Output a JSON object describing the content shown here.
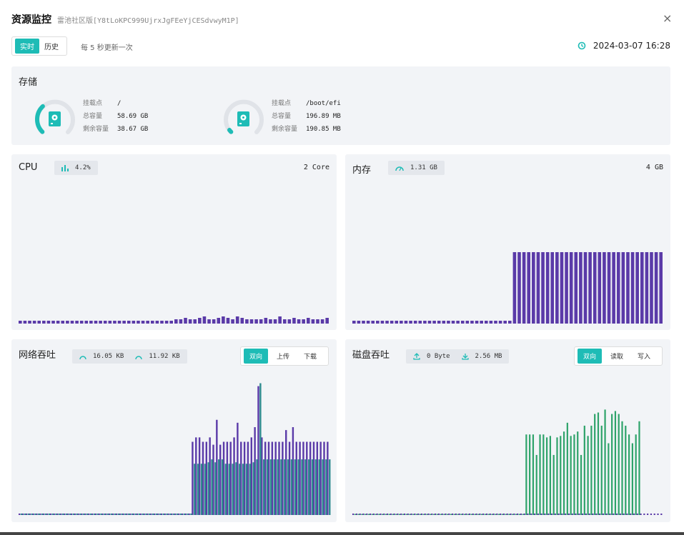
{
  "header": {
    "title": "资源监控",
    "subtitle": "雷池社区版[Y8tLoKPC999UjrxJgFEeYjCESdvwyM1P]",
    "close": "×"
  },
  "mode": {
    "realtime": "实时",
    "history": "历史"
  },
  "refresh_text": "每 5 秒更新一次",
  "timestamp": "2024-03-07 16:28",
  "storage": {
    "title": "存储",
    "disks": [
      {
        "mount_label": "挂载点",
        "mount": "/",
        "total_label": "总容量",
        "total": "58.69 GB",
        "free_label": "剩余容量",
        "free": "38.67 GB",
        "usage": 0.34
      },
      {
        "mount_label": "挂载点",
        "mount": "/boot/efi",
        "total_label": "总容量",
        "total": "196.89 MB",
        "free_label": "剩余容量",
        "free": "190.85 MB",
        "usage": 0.03
      }
    ]
  },
  "cpu": {
    "title": "CPU",
    "usage": "4.2%",
    "cores": "2 Core"
  },
  "memory": {
    "title": "内存",
    "used": "1.31 GB",
    "total": "4 GB"
  },
  "network": {
    "title": "网络吞吐",
    "up": "16.05 KB",
    "down": "11.92 KB",
    "tabs": [
      "双向",
      "上传",
      "下载"
    ]
  },
  "disk_io": {
    "title": "磁盘吞吐",
    "read": "0 Byte",
    "write": "2.56 MB",
    "tabs": [
      "双向",
      "读取",
      "写入"
    ]
  },
  "colors": {
    "accent": "#1ebcb6",
    "purple": "#5a3aa8",
    "green": "#2ea36a",
    "teal": "#2f8b8f"
  },
  "chart_data": [
    {
      "type": "bar",
      "name": "cpu",
      "values": [
        2,
        2,
        2,
        2,
        2,
        2,
        2,
        2,
        2,
        2,
        2,
        2,
        2,
        2,
        2,
        2,
        2,
        2,
        2,
        2,
        2,
        2,
        2,
        2,
        2,
        2,
        2,
        2,
        2,
        2,
        2,
        2,
        2,
        3,
        3,
        4,
        3,
        3,
        4,
        5,
        3,
        3,
        4,
        5,
        4,
        3,
        5,
        4,
        3,
        3,
        3,
        3,
        4,
        3,
        3,
        5,
        3,
        3,
        4,
        3,
        3,
        4,
        3,
        3,
        3,
        4
      ]
    },
    {
      "type": "bar",
      "name": "memory",
      "values": [
        2,
        2,
        2,
        2,
        2,
        2,
        2,
        2,
        2,
        2,
        2,
        2,
        2,
        2,
        2,
        2,
        2,
        2,
        2,
        2,
        2,
        2,
        2,
        2,
        2,
        2,
        2,
        2,
        2,
        2,
        2,
        2,
        2,
        2,
        50,
        50,
        50,
        50,
        50,
        50,
        50,
        50,
        50,
        50,
        50,
        50,
        50,
        50,
        50,
        50,
        50,
        50,
        50,
        50,
        50,
        50,
        50,
        50,
        50,
        50,
        50,
        50,
        50,
        50,
        50,
        50
      ]
    },
    {
      "type": "bar",
      "name": "network",
      "series": [
        {
          "values": [
            1,
            1,
            1,
            1,
            1,
            1,
            1,
            1,
            1,
            1,
            1,
            1,
            1,
            1,
            1,
            1,
            1,
            1,
            1,
            1,
            1,
            1,
            1,
            1,
            1,
            1,
            1,
            1,
            1,
            1,
            1,
            1,
            1,
            1,
            1,
            1,
            1,
            1,
            1,
            1,
            1,
            1,
            1,
            1,
            1,
            1,
            1,
            1,
            1,
            1,
            50,
            53,
            53,
            50,
            50,
            53,
            48,
            65,
            48,
            50,
            50,
            50,
            53,
            63,
            50,
            50,
            50,
            53,
            60,
            88,
            53,
            50,
            50,
            50,
            50,
            50,
            50,
            58,
            50,
            60,
            50,
            50,
            50,
            50,
            50,
            50,
            50,
            50,
            50,
            50
          ]
        },
        {
          "values": [
            1,
            1,
            1,
            1,
            1,
            1,
            1,
            1,
            1,
            1,
            1,
            1,
            1,
            1,
            1,
            1,
            1,
            1,
            1,
            1,
            1,
            1,
            1,
            1,
            1,
            1,
            1,
            1,
            1,
            1,
            1,
            1,
            1,
            1,
            1,
            1,
            1,
            1,
            1,
            1,
            1,
            1,
            1,
            1,
            1,
            1,
            1,
            1,
            1,
            1,
            35,
            35,
            35,
            35,
            36,
            38,
            36,
            38,
            38,
            35,
            35,
            35,
            36,
            35,
            35,
            35,
            35,
            36,
            38,
            90,
            38,
            38,
            38,
            38,
            38,
            38,
            38,
            38,
            38,
            38,
            38,
            38,
            38,
            38,
            38,
            38,
            38,
            38,
            38,
            38
          ]
        }
      ]
    },
    {
      "type": "bar",
      "name": "disk_io",
      "series": [
        {
          "values": [
            1,
            1,
            1,
            1,
            1,
            1,
            1,
            1,
            1,
            1,
            1,
            1,
            1,
            1,
            1,
            1,
            1,
            1,
            1,
            1,
            1,
            1,
            1,
            1,
            1,
            1,
            1,
            1,
            1,
            1,
            1,
            1,
            1,
            1,
            1,
            1,
            1,
            1,
            1,
            1,
            1,
            1,
            1,
            1,
            1,
            1,
            1,
            1,
            1,
            1,
            1,
            1,
            1,
            1,
            1,
            1,
            1,
            1,
            1,
            1,
            1,
            1,
            1,
            1,
            1,
            1,
            1,
            1,
            1,
            1,
            1,
            1,
            1,
            1,
            1,
            1,
            1,
            1,
            1,
            1,
            1,
            1,
            1,
            1,
            1,
            1,
            1,
            1,
            1,
            1,
            1
          ]
        },
        {
          "values": [
            0,
            0,
            0,
            0,
            0,
            0,
            0,
            0,
            0,
            0,
            0,
            0,
            0,
            0,
            0,
            0,
            0,
            0,
            0,
            0,
            0,
            0,
            0,
            0,
            0,
            0,
            0,
            0,
            0,
            0,
            0,
            0,
            0,
            0,
            0,
            0,
            0,
            0,
            0,
            0,
            0,
            0,
            0,
            0,
            0,
            0,
            0,
            0,
            0,
            0,
            55,
            55,
            55,
            41,
            55,
            55,
            53,
            54,
            41,
            53,
            54,
            57,
            63,
            54,
            55,
            57,
            41,
            61,
            54,
            61,
            69,
            70,
            61,
            72,
            49,
            69,
            71,
            69,
            64,
            61,
            55,
            49,
            55,
            64
          ]
        }
      ]
    }
  ]
}
